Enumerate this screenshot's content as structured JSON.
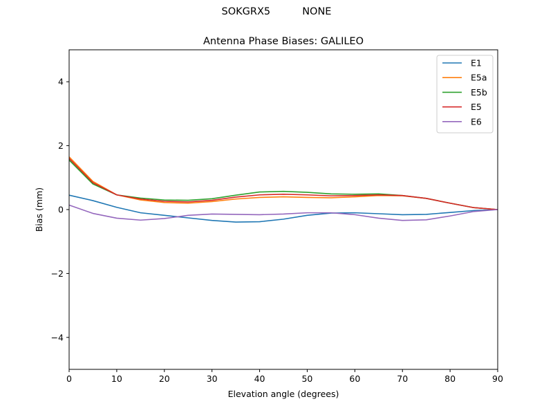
{
  "suptitle": "SOKGRX5          NONE",
  "chart_data": {
    "type": "line",
    "title": "Antenna Phase Biases: GALILEO",
    "xlabel": "Elevation angle (degrees)",
    "ylabel": "Bias (mm)",
    "xlim": [
      0,
      90
    ],
    "ylim": [
      -5,
      5
    ],
    "xticks": [
      0,
      10,
      20,
      30,
      40,
      50,
      60,
      70,
      80,
      90
    ],
    "yticks": [
      -4,
      -2,
      0,
      2,
      4
    ],
    "ytick_labels": [
      "−4",
      "−2",
      "0",
      "2",
      "4"
    ],
    "grid": false,
    "legend_position": "top-right",
    "x": [
      0,
      5,
      10,
      15,
      20,
      25,
      30,
      35,
      40,
      45,
      50,
      55,
      60,
      65,
      70,
      75,
      80,
      85,
      90
    ],
    "series": [
      {
        "name": "E1",
        "color": "#1f77b4",
        "values": [
          0.45,
          0.28,
          0.07,
          -0.1,
          -0.18,
          -0.26,
          -0.34,
          -0.39,
          -0.38,
          -0.3,
          -0.18,
          -0.11,
          -0.1,
          -0.13,
          -0.16,
          -0.15,
          -0.09,
          -0.03,
          0.0
        ]
      },
      {
        "name": "E5a",
        "color": "#ff7f0e",
        "values": [
          1.65,
          0.88,
          0.46,
          0.3,
          0.22,
          0.2,
          0.25,
          0.33,
          0.38,
          0.4,
          0.38,
          0.37,
          0.4,
          0.44,
          0.43,
          0.35,
          0.2,
          0.06,
          0.0
        ]
      },
      {
        "name": "E5b",
        "color": "#2ca02c",
        "values": [
          1.55,
          0.8,
          0.46,
          0.36,
          0.3,
          0.29,
          0.34,
          0.45,
          0.55,
          0.57,
          0.54,
          0.49,
          0.48,
          0.49,
          0.44,
          0.35,
          0.2,
          0.06,
          0.0
        ]
      },
      {
        "name": "E5",
        "color": "#d62728",
        "values": [
          1.6,
          0.84,
          0.46,
          0.33,
          0.26,
          0.24,
          0.29,
          0.39,
          0.46,
          0.48,
          0.46,
          0.43,
          0.44,
          0.46,
          0.44,
          0.35,
          0.2,
          0.06,
          0.0
        ]
      },
      {
        "name": "E6",
        "color": "#9467bd",
        "values": [
          0.14,
          -0.12,
          -0.27,
          -0.33,
          -0.28,
          -0.18,
          -0.14,
          -0.15,
          -0.16,
          -0.14,
          -0.1,
          -0.1,
          -0.16,
          -0.27,
          -0.34,
          -0.32,
          -0.2,
          -0.06,
          0.0
        ]
      }
    ]
  }
}
